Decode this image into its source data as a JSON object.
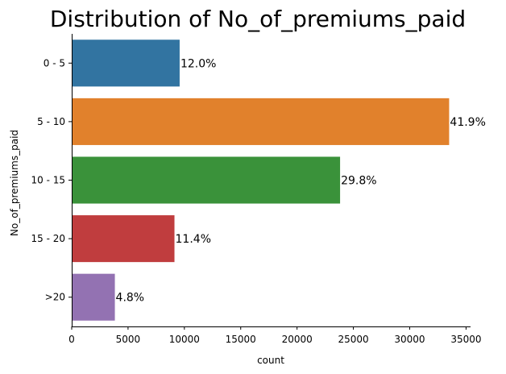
{
  "chart_data": {
    "type": "bar",
    "orientation": "horizontal",
    "title": "Distribution of No_of_premiums_paid",
    "xlabel": "count",
    "ylabel": "No_of_premiums_paid",
    "categories": [
      "0 - 5",
      "5 - 10",
      "10 - 15",
      "15 - 20",
      ">20"
    ],
    "values": [
      9580,
      33500,
      23820,
      9120,
      3830
    ],
    "data_labels": [
      "12.0%",
      "41.9%",
      "29.8%",
      "11.4%",
      "4.8%"
    ],
    "colors": [
      "#3274a1",
      "#e1812c",
      "#3a923a",
      "#c03d3e",
      "#9372b2"
    ],
    "xlim": [
      0,
      35400
    ],
    "xticks": [
      0,
      5000,
      10000,
      15000,
      20000,
      25000,
      30000,
      35000
    ],
    "xtick_labels": [
      "0",
      "5000",
      "10000",
      "15000",
      "20000",
      "25000",
      "30000",
      "35000"
    ],
    "grid": false,
    "legend": "none"
  }
}
